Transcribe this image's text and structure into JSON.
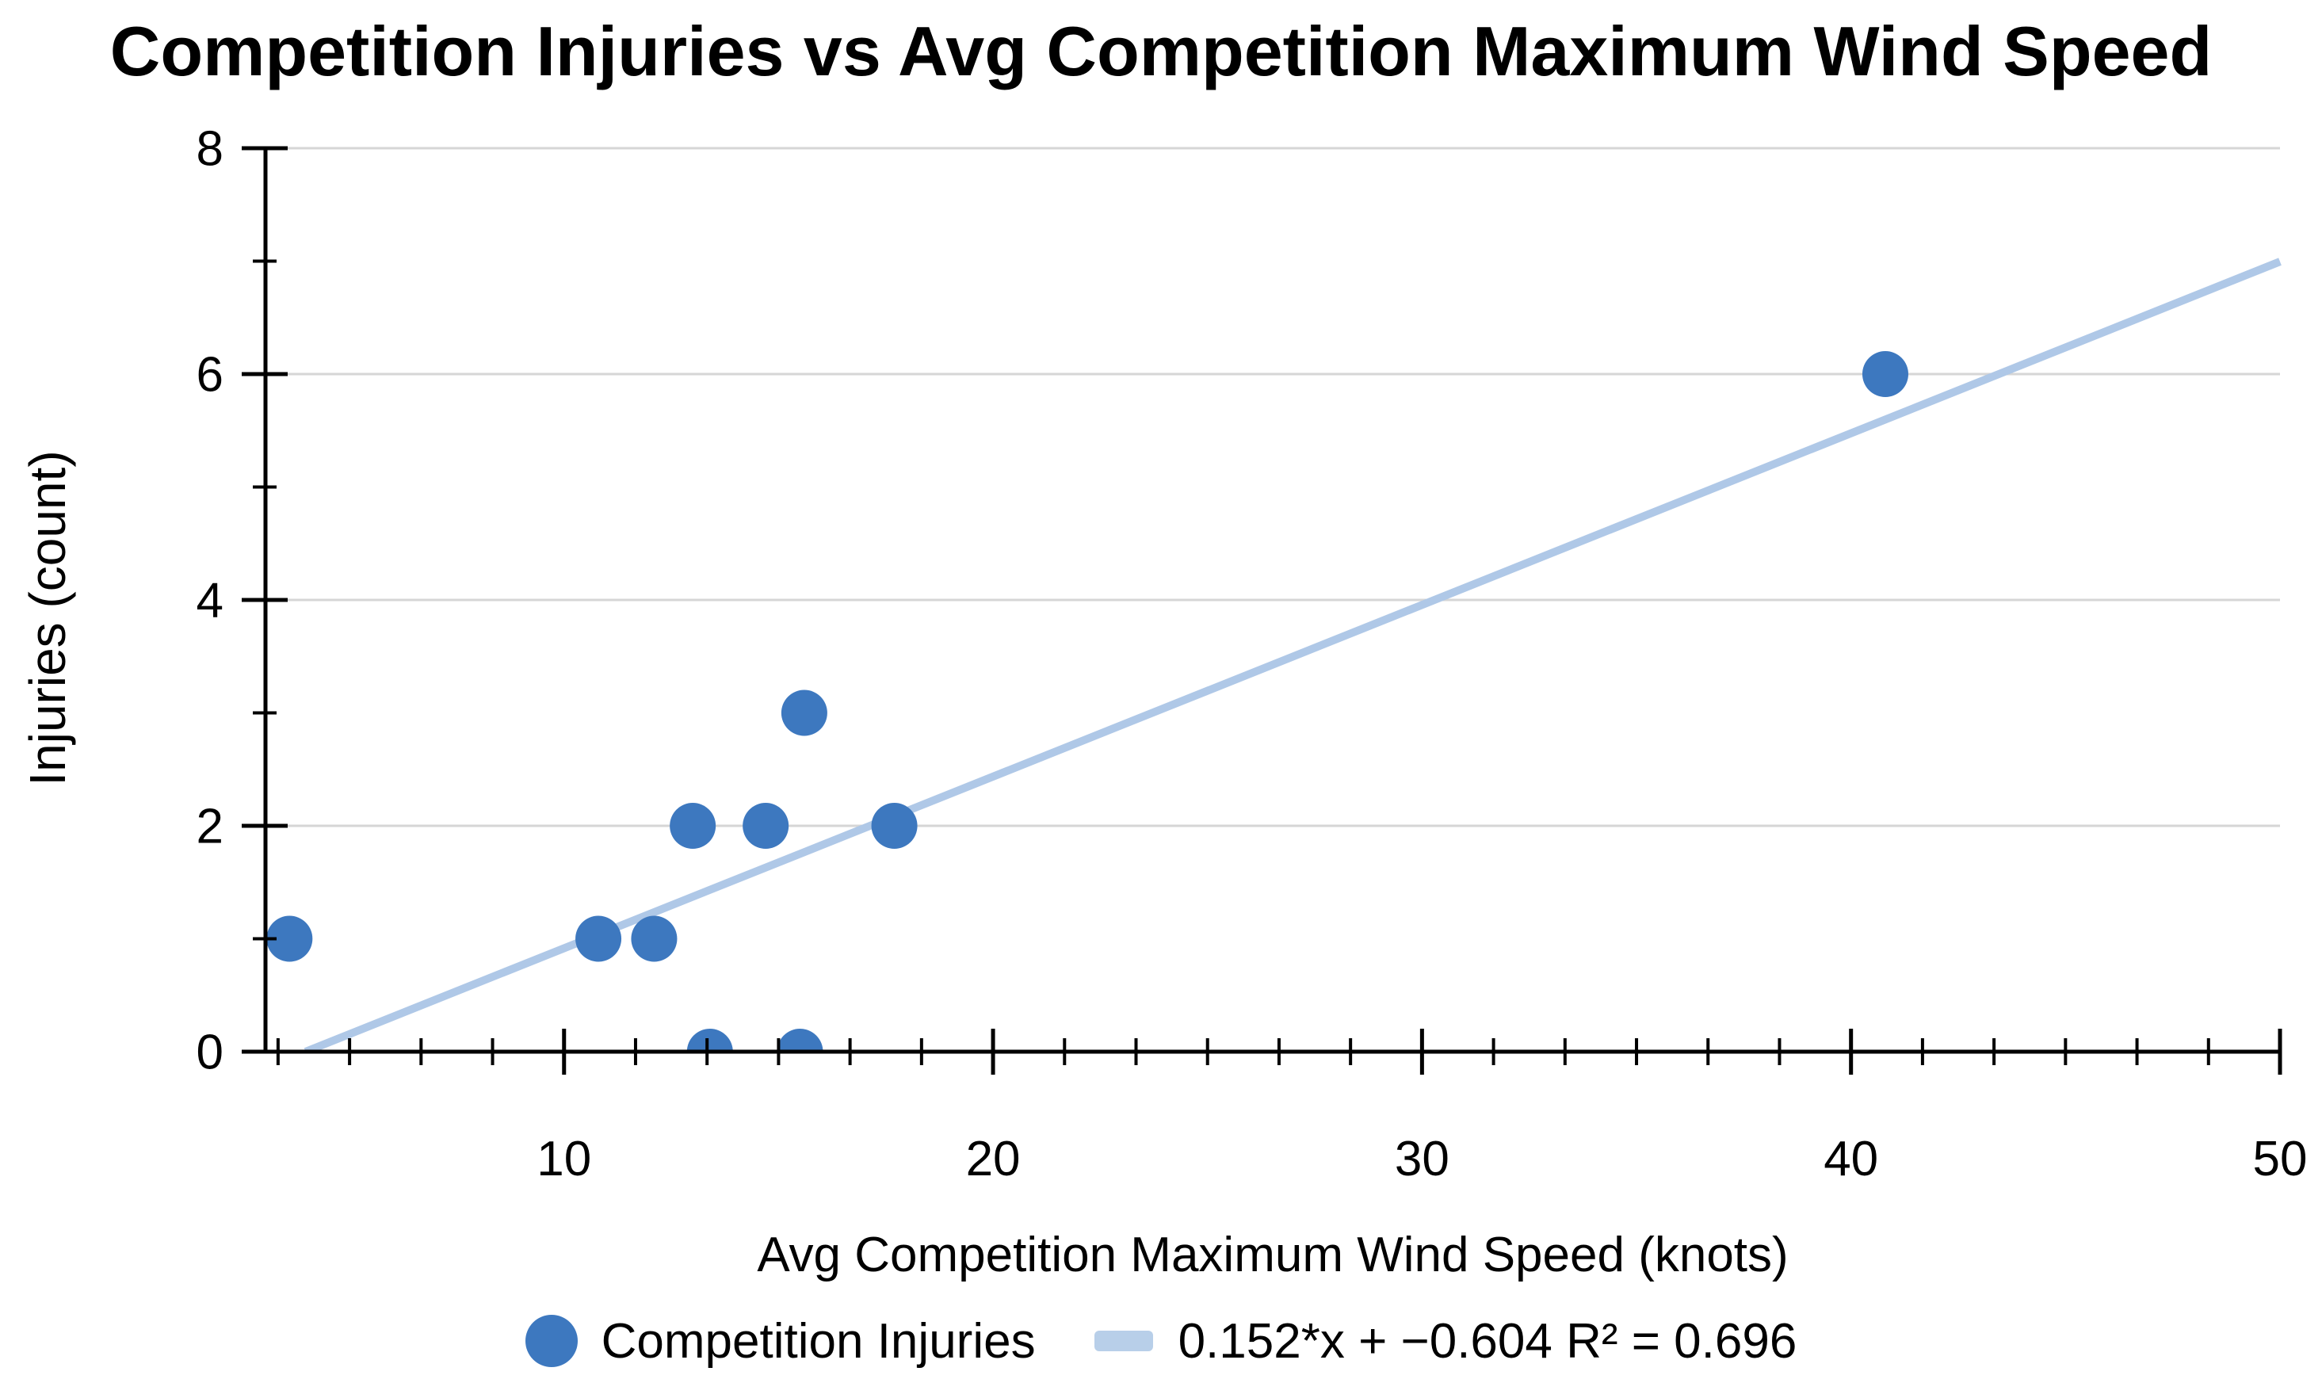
{
  "chart_data": {
    "type": "scatter",
    "title": "Competition Injuries vs Avg Competition Maximum Wind Speed",
    "xlabel": "Avg Competition Maximum Wind Speed (knots)",
    "ylabel": "Injuries (count)",
    "grid": true,
    "legend_position": "bottom",
    "x_axis": {
      "min": 3.04,
      "max": 50,
      "major_ticks": [
        10,
        20,
        30,
        40,
        50
      ],
      "tick_labels": [
        "10",
        "20",
        "30",
        "40",
        "50"
      ],
      "minor_step": 1.6666667
    },
    "y_axis": {
      "min": 0,
      "max": 8,
      "major_ticks": [
        0,
        2,
        4,
        6,
        8
      ],
      "tick_labels": [
        "0",
        "2",
        "4",
        "6",
        "8"
      ],
      "minor_step": 1,
      "gridlines": [
        2,
        4,
        6,
        8
      ]
    },
    "series": [
      {
        "name": "Competition Injuries",
        "points": [
          [
            3.6,
            1
          ],
          [
            10.8,
            1
          ],
          [
            12.1,
            1
          ],
          [
            13.0,
            2
          ],
          [
            13.4,
            0
          ],
          [
            14.7,
            2
          ],
          [
            15.5,
            0
          ],
          [
            15.6,
            3
          ],
          [
            17.7,
            2
          ],
          [
            40.8,
            6
          ]
        ]
      }
    ],
    "trendline": {
      "label": "0.152*x + −0.604 R² = 0.696",
      "slope": 0.152,
      "intercept": -0.604,
      "r2": 0.696,
      "x_start": 3.974,
      "x_end": 50
    }
  },
  "colors": {
    "point": "#3d78bf",
    "trendline": "#afc8e7",
    "legend_swatch": "#b8cfe9",
    "gridline": "#d6d6d6",
    "axis": "#000000",
    "text": "#000000"
  }
}
